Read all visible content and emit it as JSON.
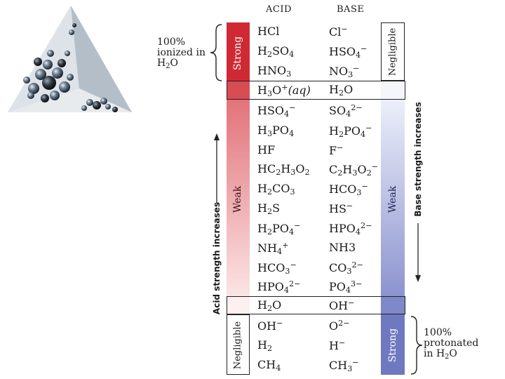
{
  "headers": {
    "acid": "ACID",
    "base": "BASE"
  },
  "acid_labels": {
    "strong": "Strong",
    "weak": "Weak",
    "negligible": "Negligible"
  },
  "base_labels": {
    "negligible": "Negligible",
    "weak": "Weak",
    "strong": "Strong"
  },
  "axis": {
    "acid_strength": "Acid strength increases",
    "base_strength": "Base strength increases"
  },
  "notes": {
    "ionized_line1": "100%",
    "ionized_line2": "ionized in",
    "ionized_line3": "H",
    "ionized_sub": "2",
    "ionized_tail": "O",
    "protonated_line1": "100%",
    "protonated_line2": "protonated",
    "protonated_line3": "in H",
    "protonated_sub": "2",
    "protonated_tail": "O"
  },
  "pairs": [
    {
      "acid": [
        [
          "HCl",
          ""
        ]
      ],
      "base": [
        [
          "Cl",
          ""
        ],
        [
          "−",
          "sup"
        ]
      ]
    },
    {
      "acid": [
        [
          "H",
          ""
        ],
        [
          "2",
          "sub"
        ],
        [
          "SO",
          ""
        ],
        [
          "4",
          "sub"
        ]
      ],
      "base": [
        [
          "HSO",
          ""
        ],
        [
          "4",
          "sub"
        ],
        [
          "−",
          "sup"
        ]
      ]
    },
    {
      "acid": [
        [
          "HNO",
          ""
        ],
        [
          "3",
          "sub"
        ]
      ],
      "base": [
        [
          "NO",
          ""
        ],
        [
          "3",
          "sub"
        ],
        [
          "−",
          "sup"
        ]
      ]
    },
    {
      "acid": [
        [
          "H",
          ""
        ],
        [
          "3",
          "sub"
        ],
        [
          "O",
          ""
        ],
        [
          "+",
          "sup"
        ],
        [
          "(aq)",
          "ital"
        ]
      ],
      "base": [
        [
          "H",
          ""
        ],
        [
          "2",
          "sub"
        ],
        [
          "O",
          ""
        ]
      ]
    },
    {
      "acid": [
        [
          "HSO",
          ""
        ],
        [
          "4",
          "sub"
        ],
        [
          "−",
          "sup"
        ]
      ],
      "base": [
        [
          "SO",
          ""
        ],
        [
          "4",
          "sub"
        ],
        [
          "2−",
          "sup"
        ]
      ]
    },
    {
      "acid": [
        [
          "H",
          ""
        ],
        [
          "3",
          "sub"
        ],
        [
          "PO",
          ""
        ],
        [
          "4",
          "sub"
        ]
      ],
      "base": [
        [
          "H",
          ""
        ],
        [
          "2",
          "sub"
        ],
        [
          "PO",
          ""
        ],
        [
          "4",
          "sub"
        ],
        [
          "−",
          "sup"
        ]
      ]
    },
    {
      "acid": [
        [
          "HF",
          ""
        ]
      ],
      "base": [
        [
          "F",
          ""
        ],
        [
          "−",
          "sup"
        ]
      ]
    },
    {
      "acid": [
        [
          "HC",
          ""
        ],
        [
          "2",
          "sub"
        ],
        [
          "H",
          ""
        ],
        [
          "3",
          "sub"
        ],
        [
          "O",
          ""
        ],
        [
          "2",
          "sub"
        ]
      ],
      "base": [
        [
          "C",
          ""
        ],
        [
          "2",
          "sub"
        ],
        [
          "H",
          ""
        ],
        [
          "3",
          "sub"
        ],
        [
          "O",
          ""
        ],
        [
          "2",
          "sub"
        ],
        [
          "−",
          "sup"
        ]
      ]
    },
    {
      "acid": [
        [
          "H",
          ""
        ],
        [
          "2",
          "sub"
        ],
        [
          "CO",
          ""
        ],
        [
          "3",
          "sub"
        ]
      ],
      "base": [
        [
          "HCO",
          ""
        ],
        [
          "3",
          "sub"
        ],
        [
          "−",
          "sup"
        ]
      ]
    },
    {
      "acid": [
        [
          "H",
          ""
        ],
        [
          "2",
          "sub"
        ],
        [
          "S",
          ""
        ]
      ],
      "base": [
        [
          "HS",
          ""
        ],
        [
          "−",
          "sup"
        ]
      ]
    },
    {
      "acid": [
        [
          "H",
          ""
        ],
        [
          "2",
          "sub"
        ],
        [
          "PO",
          ""
        ],
        [
          "4",
          "sub"
        ],
        [
          "−",
          "sup"
        ]
      ],
      "base": [
        [
          "HPO",
          ""
        ],
        [
          "4",
          "sub"
        ],
        [
          "2−",
          "sup"
        ]
      ]
    },
    {
      "acid": [
        [
          "NH",
          ""
        ],
        [
          "4",
          "sub"
        ],
        [
          "+",
          "sup"
        ]
      ],
      "base": [
        [
          "NH3",
          ""
        ]
      ]
    },
    {
      "acid": [
        [
          "HCO",
          ""
        ],
        [
          "3",
          "sub"
        ],
        [
          "−",
          "sup"
        ]
      ],
      "base": [
        [
          "CO",
          ""
        ],
        [
          "3",
          "sub"
        ],
        [
          "2−",
          "sup"
        ]
      ]
    },
    {
      "acid": [
        [
          "HPO",
          ""
        ],
        [
          "4",
          "sub"
        ],
        [
          "2−",
          "sup"
        ]
      ],
      "base": [
        [
          "PO",
          ""
        ],
        [
          "4",
          "sub"
        ],
        [
          "3−",
          "sup"
        ]
      ]
    },
    {
      "acid": [
        [
          "H",
          ""
        ],
        [
          "2",
          "sub"
        ],
        [
          "O",
          ""
        ]
      ],
      "base": [
        [
          "OH",
          ""
        ],
        [
          "−",
          "sup"
        ]
      ]
    },
    {
      "acid": [
        [
          "OH",
          ""
        ],
        [
          "−",
          "sup"
        ]
      ],
      "base": [
        [
          "O",
          ""
        ],
        [
          "2−",
          "sup"
        ]
      ]
    },
    {
      "acid": [
        [
          "H",
          ""
        ],
        [
          "2",
          "sub"
        ]
      ],
      "base": [
        [
          "H",
          ""
        ],
        [
          "−",
          "sup"
        ]
      ]
    },
    {
      "acid": [
        [
          "CH",
          ""
        ],
        [
          "4",
          "sub"
        ]
      ],
      "base": [
        [
          "CH",
          ""
        ],
        [
          "3",
          "sub"
        ],
        [
          "−",
          "sup"
        ]
      ]
    }
  ],
  "colors": {
    "acid_strong": "#cf2a33",
    "acid_weak_top": "#e2737a",
    "acid_weak_bottom": "#fbe4e5",
    "base_weak_top": "#eceffa",
    "base_weak_bottom": "#8c94cf",
    "base_strong": "#6f79c0"
  }
}
